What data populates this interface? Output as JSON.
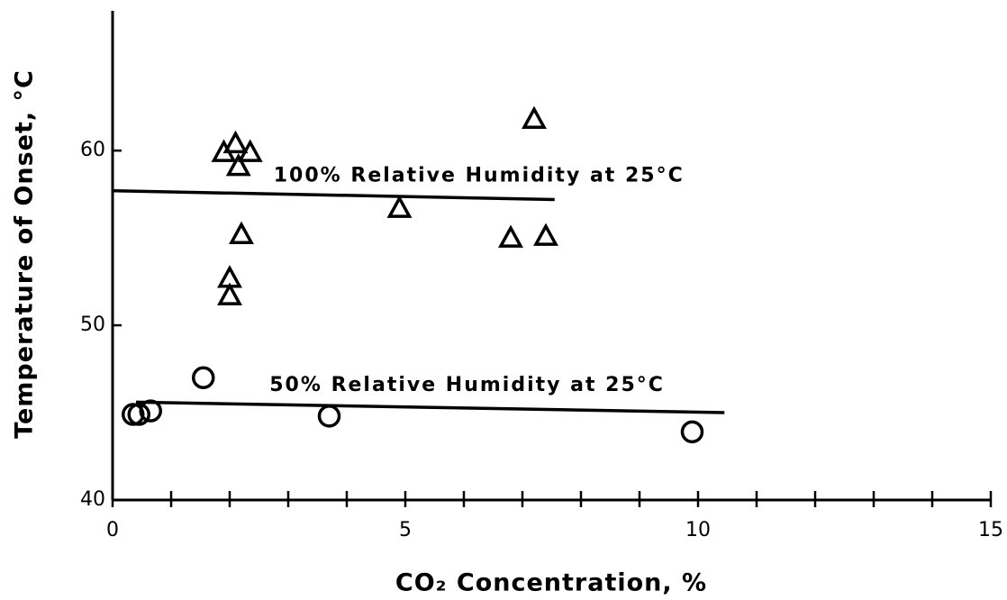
{
  "chart_data": {
    "type": "scatter",
    "xlabel": "CO₂ Concentration, %",
    "ylabel": "Temperature of Onset, °C",
    "xlim": [
      0,
      15
    ],
    "ylim": [
      40,
      68
    ],
    "xticks": [
      0,
      5,
      10,
      15
    ],
    "xticks_minor": [
      1,
      2,
      3,
      4,
      6,
      7,
      8,
      9,
      11,
      12,
      13,
      14
    ],
    "yticks": [
      40,
      50,
      60
    ],
    "color": "#000000",
    "series": [
      {
        "name": "100% Relative Humidity at 25°C",
        "marker": "triangle",
        "x": [
          1.9,
          2.1,
          2.35,
          2.15,
          2.2,
          2.0,
          2.0,
          4.9,
          7.2,
          6.8,
          7.4
        ],
        "values": [
          59.9,
          60.4,
          59.9,
          59.1,
          55.2,
          52.7,
          51.7,
          56.7,
          61.8,
          55.0,
          55.1
        ],
        "fit": {
          "x": [
            0,
            7.55
          ],
          "y": [
            57.7,
            57.2
          ]
        }
      },
      {
        "name": "50% Relative Humidity at 25°C",
        "marker": "circle",
        "x": [
          0.35,
          0.45,
          0.65,
          1.55,
          3.7,
          9.9
        ],
        "values": [
          44.9,
          44.9,
          45.1,
          47.0,
          44.8,
          43.9
        ],
        "fit": {
          "x": [
            0.4,
            10.45
          ],
          "y": [
            45.6,
            45.0
          ]
        }
      }
    ]
  }
}
